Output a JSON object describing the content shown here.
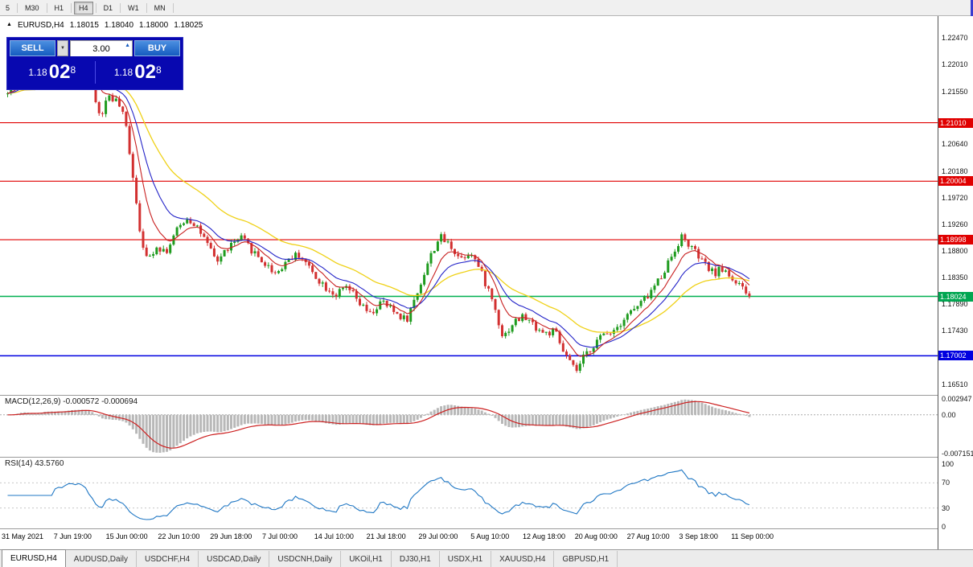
{
  "icons": {
    "dropdown": "▼",
    "spin_up": "▲",
    "symbol_marker": "▲"
  },
  "toolbar": {
    "timeframes": [
      {
        "label": "5",
        "active": false
      },
      {
        "label": "M30",
        "active": false
      },
      {
        "label": "H1",
        "active": false
      },
      {
        "label": "H4",
        "active": true
      },
      {
        "label": "D1",
        "active": false
      },
      {
        "label": "W1",
        "active": false
      },
      {
        "label": "MN",
        "active": false
      }
    ]
  },
  "chart_header": {
    "symbol": "EURUSD,H4",
    "open": "1.18015",
    "high": "1.18040",
    "low": "1.18000",
    "close": "1.18025"
  },
  "trade_panel": {
    "sell_label": "SELL",
    "buy_label": "BUY",
    "volume": "3.00",
    "sell_price_prefix": "1.18",
    "sell_price_big": "02",
    "sell_price_sup": "8",
    "buy_price_prefix": "1.18",
    "buy_price_big": "02",
    "buy_price_sup": "8"
  },
  "price_axis": {
    "plain": [
      {
        "text": "1.22470",
        "price": 1.2247
      },
      {
        "text": "1.22010",
        "price": 1.2201
      },
      {
        "text": "1.21550",
        "price": 1.2155
      },
      {
        "text": "1.20640",
        "price": 1.2064
      },
      {
        "text": "1.20180",
        "price": 1.2018
      },
      {
        "text": "1.19720",
        "price": 1.1972
      },
      {
        "text": "1.19260",
        "price": 1.1926
      },
      {
        "text": "1.18800",
        "price": 1.188
      },
      {
        "text": "1.18350",
        "price": 1.1835
      },
      {
        "text": "1.17890",
        "price": 1.1789
      },
      {
        "text": "1.17430",
        "price": 1.1743
      },
      {
        "text": "1.16510",
        "price": 1.1651
      }
    ],
    "tags": [
      {
        "text": "1.21010",
        "price": 1.2101,
        "color": "#e00000"
      },
      {
        "text": "1.20004",
        "price": 1.20004,
        "color": "#e00000"
      },
      {
        "text": "1.18998",
        "price": 1.18998,
        "color": "#e00000"
      },
      {
        "text": "1.18024",
        "price": 1.18024,
        "color": "#00a651"
      },
      {
        "text": "1.17002",
        "price": 1.17002,
        "color": "#0000e0"
      }
    ]
  },
  "indicators": {
    "macd": {
      "label": "MACD(12,26,9) -0.000572 -0.000694",
      "axis": [
        {
          "text": "0.002947",
          "value": 0.002947
        },
        {
          "text": "0.00",
          "value": 0
        },
        {
          "text": "-0.007151",
          "value": -0.007151
        }
      ]
    },
    "rsi": {
      "label": "RSI(14) 43.5760",
      "axis": [
        {
          "text": "100",
          "value": 100
        },
        {
          "text": "70",
          "value": 70
        },
        {
          "text": "30",
          "value": 30
        },
        {
          "text": "0",
          "value": 0
        }
      ]
    }
  },
  "time_axis": [
    "31 May 2021",
    "7 Jun 19:00",
    "15 Jun 00:00",
    "22 Jun 10:00",
    "29 Jun 18:00",
    "7 Jul 00:00",
    "14 Jul 10:00",
    "21 Jul 18:00",
    "29 Jul 00:00",
    "5 Aug 10:00",
    "12 Aug 18:00",
    "20 Aug 00:00",
    "27 Aug 10:00",
    "3 Sep 18:00",
    "11 Sep 00:00"
  ],
  "tabs": [
    {
      "label": "EURUSD,H4",
      "active": true
    },
    {
      "label": "AUDUSD,Daily",
      "active": false
    },
    {
      "label": "USDCHF,H4",
      "active": false
    },
    {
      "label": "USDCAD,Daily",
      "active": false
    },
    {
      "label": "USDCNH,Daily",
      "active": false
    },
    {
      "label": "UKOil,H1",
      "active": false
    },
    {
      "label": "DJ30,H1",
      "active": false
    },
    {
      "label": "USDX,H1",
      "active": false
    },
    {
      "label": "XAUUSD,H4",
      "active": false
    },
    {
      "label": "GBPUSD,H1",
      "active": false
    }
  ],
  "chart_data": {
    "type": "candlestick",
    "symbol": "EURUSD",
    "timeframe": "H4",
    "ohlc_current": {
      "open": 1.18015,
      "high": 1.1804,
      "low": 1.18,
      "close": 1.18025
    },
    "y_range": [
      1.1633,
      1.22844
    ],
    "candle_count": 220,
    "seed": 42,
    "price_path": [
      [
        0,
        1.215
      ],
      [
        0.018,
        1.2185
      ],
      [
        0.035,
        1.216
      ],
      [
        0.051,
        1.2195
      ],
      [
        0.067,
        1.218
      ],
      [
        0.087,
        1.221
      ],
      [
        0.103,
        1.2215
      ],
      [
        0.116,
        1.215
      ],
      [
        0.125,
        1.2108
      ],
      [
        0.136,
        1.215
      ],
      [
        0.149,
        1.2135
      ],
      [
        0.159,
        1.21
      ],
      [
        0.168,
        1.202
      ],
      [
        0.178,
        1.192
      ],
      [
        0.188,
        1.1862
      ],
      [
        0.2,
        1.189
      ],
      [
        0.214,
        1.188
      ],
      [
        0.228,
        1.1915
      ],
      [
        0.241,
        1.1938
      ],
      [
        0.255,
        1.1925
      ],
      [
        0.269,
        1.189
      ],
      [
        0.282,
        1.1862
      ],
      [
        0.298,
        1.1888
      ],
      [
        0.315,
        1.1902
      ],
      [
        0.331,
        1.188
      ],
      [
        0.347,
        1.1858
      ],
      [
        0.362,
        1.1842
      ],
      [
        0.379,
        1.1868
      ],
      [
        0.394,
        1.1875
      ],
      [
        0.41,
        1.1845
      ],
      [
        0.426,
        1.1822
      ],
      [
        0.443,
        1.1805
      ],
      [
        0.458,
        1.1818
      ],
      [
        0.474,
        1.179
      ],
      [
        0.489,
        1.177
      ],
      [
        0.504,
        1.1793
      ],
      [
        0.522,
        1.1775
      ],
      [
        0.538,
        1.1762
      ],
      [
        0.552,
        1.1808
      ],
      [
        0.567,
        1.1862
      ],
      [
        0.582,
        1.1905
      ],
      [
        0.597,
        1.189
      ],
      [
        0.61,
        1.1868
      ],
      [
        0.625,
        1.188
      ],
      [
        0.64,
        1.1838
      ],
      [
        0.654,
        1.1795
      ],
      [
        0.668,
        1.1732
      ],
      [
        0.682,
        1.1758
      ],
      [
        0.696,
        1.1768
      ],
      [
        0.71,
        1.1752
      ],
      [
        0.724,
        1.1738
      ],
      [
        0.738,
        1.1742
      ],
      [
        0.747,
        1.1712
      ],
      [
        0.758,
        1.1688
      ],
      [
        0.766,
        1.1672
      ],
      [
        0.776,
        1.1695
      ],
      [
        0.79,
        1.172
      ],
      [
        0.805,
        1.1738
      ],
      [
        0.82,
        1.1748
      ],
      [
        0.835,
        1.1772
      ],
      [
        0.85,
        1.1785
      ],
      [
        0.866,
        1.1808
      ],
      [
        0.881,
        1.1838
      ],
      [
        0.895,
        1.1872
      ],
      [
        0.908,
        1.1905
      ],
      [
        0.921,
        1.1888
      ],
      [
        0.936,
        1.1862
      ],
      [
        0.951,
        1.1842
      ],
      [
        0.966,
        1.185
      ],
      [
        0.982,
        1.1825
      ],
      [
        1,
        1.18025
      ]
    ],
    "horizontal_lines": [
      {
        "price": 1.2101,
        "color": "#e00000",
        "width": 1.1
      },
      {
        "price": 1.20004,
        "color": "#e00000",
        "width": 1.1
      },
      {
        "price": 1.18998,
        "color": "#e00000",
        "width": 1.1
      },
      {
        "price": 1.18024,
        "color": "#00b050",
        "width": 1.5
      },
      {
        "price": 1.17002,
        "color": "#0000e0",
        "width": 1.5
      }
    ],
    "moving_averages": [
      {
        "period": 34,
        "color": "#efd117",
        "width": 1.3
      },
      {
        "period": 16,
        "color": "#2424c8",
        "width": 1.1
      },
      {
        "period": 8,
        "color": "#c82020",
        "width": 1.1
      }
    ],
    "macd": {
      "fast": 12,
      "slow": 26,
      "signal": 9,
      "current_main": -0.000572,
      "current_signal": -0.000694,
      "y_range": [
        -0.007151,
        0.002947
      ]
    },
    "rsi": {
      "period": 14,
      "current": 43.576,
      "y_range": [
        0,
        100
      ],
      "levels": [
        30,
        70
      ]
    },
    "colors": {
      "up": "#1e9b1e",
      "down": "#d23030",
      "macd_hist": "#b8b8b8",
      "macd_signal": "#cc2020",
      "rsi": "#1f77c4",
      "level": "#c8c8c8"
    }
  }
}
